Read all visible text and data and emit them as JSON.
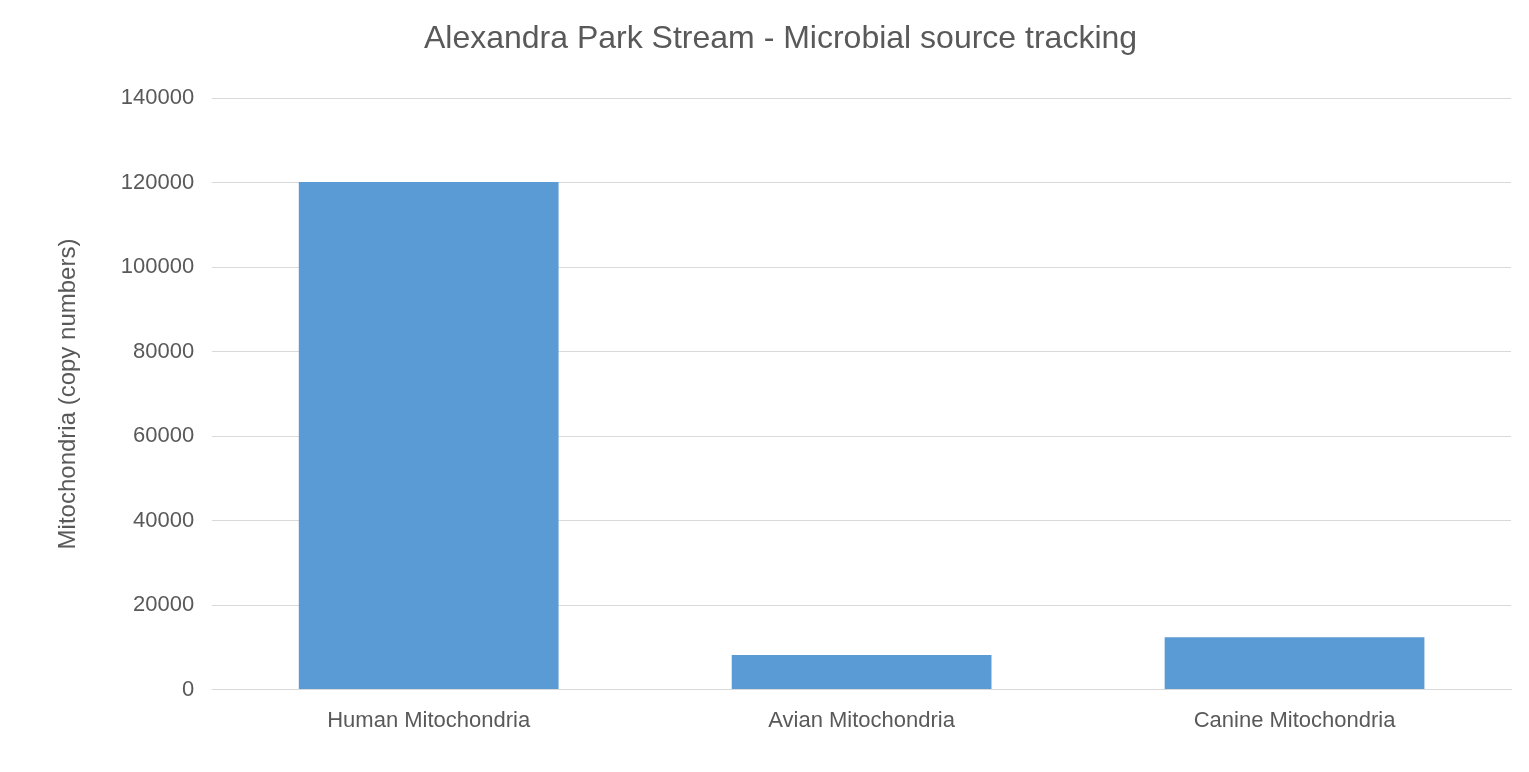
{
  "chart_data": {
    "type": "bar",
    "title": "Alexandra Park Stream - Microbial source tracking",
    "ylabel": "Mitochondria (copy numbers)",
    "categories": [
      "Human Mitochondria",
      "Avian Mitochondria",
      "Canine Mitochondria"
    ],
    "values": [
      120200,
      8200,
      12400
    ],
    "color": "#5b9bd5",
    "ylim": [
      0,
      140000
    ],
    "yticks": [
      0,
      20000,
      40000,
      60000,
      80000,
      100000,
      120000,
      140000
    ],
    "grid": "y",
    "legend": false
  }
}
